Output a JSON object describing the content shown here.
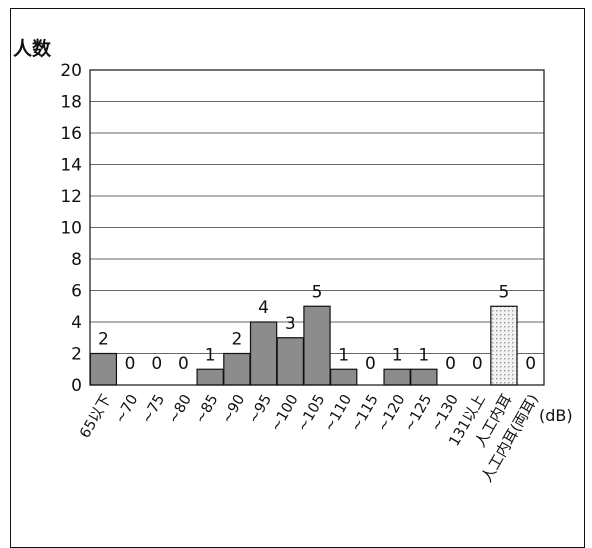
{
  "chart_data": {
    "type": "bar",
    "ylabel": "人数",
    "unit": "(dB)",
    "ylim": [
      0,
      20
    ],
    "yticks": [
      0,
      2,
      4,
      6,
      8,
      10,
      12,
      14,
      16,
      18,
      20
    ],
    "grid": true,
    "categories": [
      "65以下",
      "~70",
      "~75",
      "~80",
      "~85",
      "~90",
      "~95",
      "~100",
      "~105",
      "~110",
      "~115",
      "~120",
      "~125",
      "~130",
      "131以上",
      "人工内耳",
      "人工内耳(両耳)"
    ],
    "values": [
      2,
      0,
      0,
      0,
      1,
      2,
      4,
      3,
      5,
      1,
      0,
      1,
      1,
      0,
      0,
      5,
      0
    ],
    "bar_styles": [
      "solid",
      "solid",
      "solid",
      "solid",
      "solid",
      "solid",
      "solid",
      "solid",
      "solid",
      "solid",
      "solid",
      "solid",
      "solid",
      "solid",
      "solid",
      "dotted",
      "solid"
    ]
  },
  "colors": {
    "bar_fill": "#8c8c8c",
    "bar_stroke": "#111111",
    "dotted_fill": "#f2f2f2",
    "dotted_dot": "#9a9a9a",
    "grid": "#666666"
  }
}
